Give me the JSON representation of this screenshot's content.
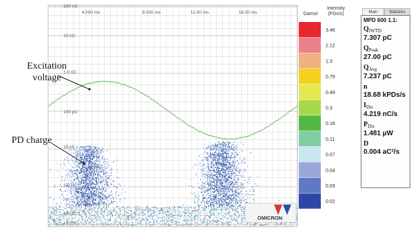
{
  "plot": {
    "time_ticks": [
      "4.000 ms",
      "8.000 ms",
      "12.00 ms",
      "16.00 ms"
    ],
    "charge_ticks": [
      "100 nC",
      "10 nC",
      "1.0 nC",
      "100 pC",
      "10 pC",
      "1.0 pC",
      "100 fC",
      "10.0 fC"
    ],
    "logo_text": "OMICRON"
  },
  "annotations": {
    "excitation_line1": "Excitation",
    "excitation_line2": "voltage",
    "pd_charge": "PD charge"
  },
  "colorbar": {
    "gamut_label": "Gamut",
    "intensity_line1": "Intensity",
    "intensity_line2": "(PDs/s)",
    "scale": [
      "3.46",
      "2.12",
      "1.3",
      "0.79",
      "0.49",
      "0.3",
      "0.18",
      "0.11",
      "0.07",
      "0.04",
      "0.03",
      "0.02"
    ],
    "colors": [
      "#e8262d",
      "#ec7f8c",
      "#f0b080",
      "#f2d21e",
      "#e5e84e",
      "#a8d94a",
      "#55b845",
      "#7fcfa2",
      "#c9e7ef",
      "#9ba7d8",
      "#5f79c6",
      "#2e47a6"
    ]
  },
  "panel": {
    "tabs": [
      "Main",
      "Statistics"
    ],
    "header": "MPD 600 1.1:",
    "items": [
      {
        "sym": "Q",
        "sub": "IWTD",
        "value": "7.307 pC"
      },
      {
        "sym": "Q",
        "sub": "Peak",
        "value": "27.00 pC"
      },
      {
        "sym": "Q",
        "sub": "Avg",
        "value": "7.237 pC"
      },
      {
        "sym": "n",
        "sub": "",
        "value": "18.68 kPDs/s"
      },
      {
        "sym": "I",
        "sub": "Dis",
        "value": "4.219 nC/s"
      },
      {
        "sym": "P",
        "sub": "Dis",
        "value": "1.481 µW"
      },
      {
        "sym": "D",
        "sub": "",
        "value": "0.004 aC²/s"
      }
    ]
  },
  "colors": {
    "sine": "#2fa52f",
    "pd_dense": "#2a4fa0",
    "pd_light": "#7f9fd8",
    "baseline_band": "#5aa0d8",
    "logo_red": "#d23a3a"
  }
}
